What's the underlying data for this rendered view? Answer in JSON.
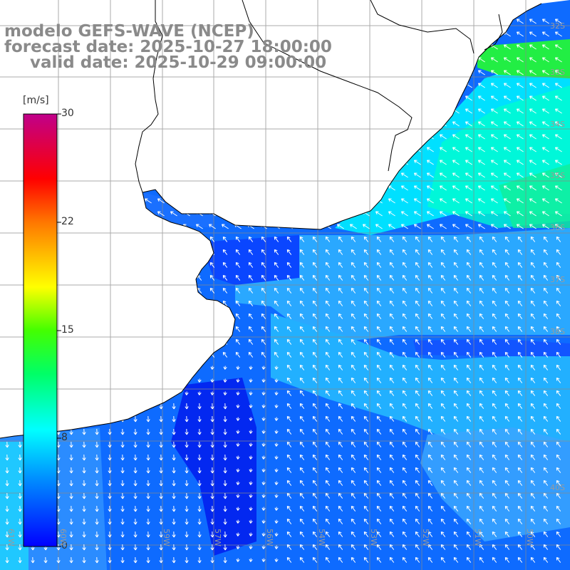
{
  "header": {
    "line1": "modelo GEFS-WAVE (NCEP)",
    "line2": "forecast date: 2025-10-27 18:00:00",
    "line3": "valid date: 2025-10-29 09:00:00"
  },
  "colorbar": {
    "unit": "[m/s]",
    "ticks": [
      "30",
      "22",
      "15",
      "8",
      "0"
    ],
    "tick_values": [
      30,
      22,
      15,
      8,
      0
    ],
    "min": 0,
    "max": 30,
    "colors": [
      "#0000ff",
      "#00aaff",
      "#00ffff",
      "#00ff00",
      "#ffff00",
      "#ff8800",
      "#ff0000",
      "#c0008a"
    ]
  },
  "map": {
    "variable": "wind speed and direction",
    "lat_labels": [
      "32S",
      "33S",
      "34S",
      "35S",
      "36S",
      "37S",
      "38S",
      "40S"
    ],
    "lon_labels": [
      "61W",
      "60W",
      "59W",
      "57W",
      "56W",
      "54W",
      "53W",
      "52W",
      "51W",
      "50W"
    ],
    "colors": {
      "land": "#ffffff",
      "grid": "#888888",
      "coast": "#000000",
      "arrow": "#ffffff"
    },
    "regions": [
      {
        "id": "deep-blue-core",
        "speed_ms": 1
      },
      {
        "id": "blue-shelf",
        "speed_ms": 3
      },
      {
        "id": "light-blue-offshore",
        "speed_ms": 6
      },
      {
        "id": "cyan-southern-brazil",
        "speed_ms": 8
      },
      {
        "id": "green-northeast",
        "speed_ms": 11
      }
    ]
  }
}
